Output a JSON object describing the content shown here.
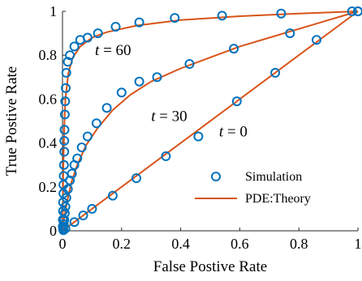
{
  "chart_data": {
    "type": "line",
    "xlabel": "False Postive Rate",
    "ylabel": "True Postive Rate",
    "xlim": [
      0,
      1
    ],
    "ylim": [
      0,
      1
    ],
    "xticks": [
      0,
      0.2,
      0.4,
      0.6,
      0.8,
      1
    ],
    "yticks": [
      0,
      0.2,
      0.4,
      0.6,
      0.8,
      1
    ],
    "xtick_labels": [
      "0",
      "0.2",
      "0.4",
      "0.6",
      "0.8",
      "1"
    ],
    "ytick_labels": [
      "0",
      "0.2",
      "0.4",
      "0.6",
      "0.8",
      "1"
    ],
    "grid": false,
    "legend_position": "bottom-right",
    "series": [
      {
        "name": "Simulation",
        "style": "markers",
        "color": "#0072BD",
        "groups": [
          {
            "label": "t = 0",
            "points": [
              [
                0.003,
                0.003
              ],
              [
                0.01,
                0.01
              ],
              [
                0.04,
                0.04
              ],
              [
                0.07,
                0.07
              ],
              [
                0.1,
                0.1
              ],
              [
                0.17,
                0.16
              ],
              [
                0.25,
                0.24
              ],
              [
                0.35,
                0.34
              ],
              [
                0.46,
                0.43
              ],
              [
                0.59,
                0.59
              ],
              [
                0.72,
                0.72
              ],
              [
                0.86,
                0.87
              ],
              [
                1.0,
                1.0
              ]
            ]
          },
          {
            "label": "t = 30",
            "points": [
              [
                0.002,
                0.01
              ],
              [
                0.004,
                0.03
              ],
              [
                0.006,
                0.05
              ],
              [
                0.008,
                0.08
              ],
              [
                0.01,
                0.11
              ],
              [
                0.013,
                0.15
              ],
              [
                0.018,
                0.19
              ],
              [
                0.025,
                0.23
              ],
              [
                0.032,
                0.26
              ],
              [
                0.04,
                0.3
              ],
              [
                0.05,
                0.33
              ],
              [
                0.065,
                0.38
              ],
              [
                0.085,
                0.43
              ],
              [
                0.115,
                0.49
              ],
              [
                0.15,
                0.56
              ],
              [
                0.2,
                0.63
              ],
              [
                0.26,
                0.68
              ],
              [
                0.32,
                0.7
              ],
              [
                0.43,
                0.76
              ],
              [
                0.58,
                0.83
              ],
              [
                0.77,
                0.9
              ],
              [
                0.98,
                1.0
              ]
            ]
          },
          {
            "label": "t = 60",
            "points": [
              [
                0.001,
                0.02
              ],
              [
                0.001,
                0.05
              ],
              [
                0.002,
                0.09
              ],
              [
                0.002,
                0.13
              ],
              [
                0.003,
                0.17
              ],
              [
                0.003,
                0.21
              ],
              [
                0.004,
                0.25
              ],
              [
                0.005,
                0.3
              ],
              [
                0.006,
                0.36
              ],
              [
                0.006,
                0.41
              ],
              [
                0.007,
                0.46
              ],
              [
                0.008,
                0.53
              ],
              [
                0.009,
                0.59
              ],
              [
                0.011,
                0.65
              ],
              [
                0.013,
                0.72
              ],
              [
                0.018,
                0.77
              ],
              [
                0.025,
                0.8
              ],
              [
                0.04,
                0.84
              ],
              [
                0.06,
                0.87
              ],
              [
                0.085,
                0.88
              ],
              [
                0.12,
                0.9
              ],
              [
                0.18,
                0.93
              ],
              [
                0.26,
                0.95
              ],
              [
                0.38,
                0.97
              ],
              [
                0.54,
                0.98
              ],
              [
                0.74,
                0.99
              ],
              [
                1.0,
                1.0
              ]
            ]
          }
        ]
      },
      {
        "name": "PDE:Theory",
        "style": "line",
        "color": "#D95319",
        "groups": [
          {
            "label": "t = 0",
            "points": [
              [
                0,
                0
              ],
              [
                1,
                1
              ]
            ]
          },
          {
            "label": "t = 30",
            "points": [
              [
                0,
                0
              ],
              [
                0.005,
                0.05
              ],
              [
                0.015,
                0.13
              ],
              [
                0.03,
                0.22
              ],
              [
                0.05,
                0.3
              ],
              [
                0.08,
                0.39
              ],
              [
                0.12,
                0.47
              ],
              [
                0.17,
                0.55
              ],
              [
                0.23,
                0.62
              ],
              [
                0.3,
                0.68
              ],
              [
                0.4,
                0.74
              ],
              [
                0.5,
                0.79
              ],
              [
                0.6,
                0.84
              ],
              [
                0.7,
                0.88
              ],
              [
                0.8,
                0.92
              ],
              [
                0.9,
                0.96
              ],
              [
                1.0,
                1.0
              ]
            ]
          },
          {
            "label": "t = 60",
            "points": [
              [
                0,
                0
              ],
              [
                0.001,
                0.12
              ],
              [
                0.003,
                0.3
              ],
              [
                0.006,
                0.48
              ],
              [
                0.01,
                0.6
              ],
              [
                0.02,
                0.72
              ],
              [
                0.035,
                0.79
              ],
              [
                0.06,
                0.84
              ],
              [
                0.1,
                0.88
              ],
              [
                0.15,
                0.905
              ],
              [
                0.25,
                0.935
              ],
              [
                0.4,
                0.96
              ],
              [
                0.6,
                0.978
              ],
              [
                0.8,
                0.99
              ],
              [
                1.0,
                1.0
              ]
            ]
          }
        ]
      }
    ],
    "annotations": [
      {
        "text": "t = 60",
        "x": 0.11,
        "y": 0.8
      },
      {
        "text": "t = 30",
        "x": 0.3,
        "y": 0.5
      },
      {
        "text": "t = 0",
        "x": 0.53,
        "y": 0.43
      }
    ],
    "legend": [
      {
        "label": "Simulation",
        "style": "marker"
      },
      {
        "label": "PDE:Theory",
        "style": "line"
      }
    ]
  }
}
